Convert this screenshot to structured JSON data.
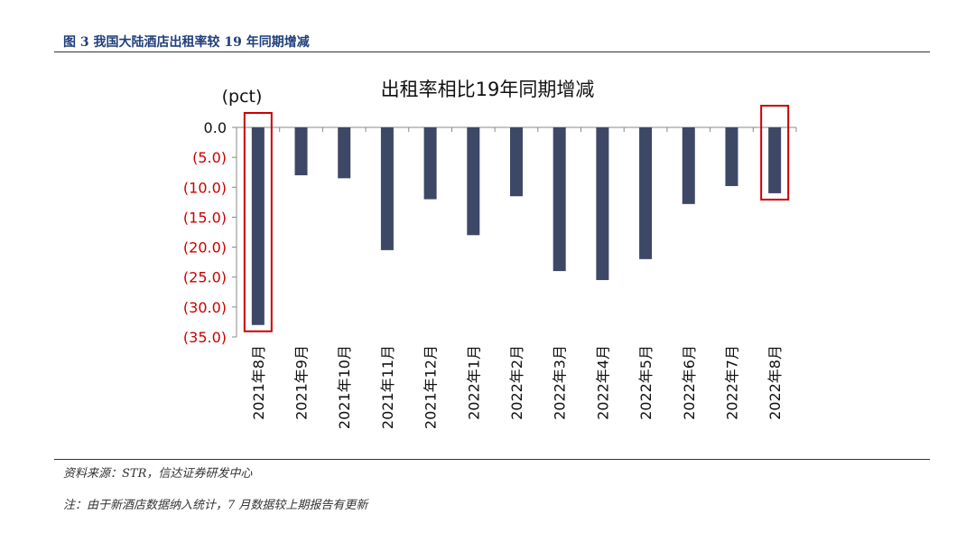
{
  "figure_label": "图 3   我国大陆酒店出租率较 19 年同期增减",
  "source_note": "资料来源：STR，信达证券研发中心",
  "footnote": "注：由于新酒店数据纳入统计，7 月数据较上期报告有更新",
  "colors": {
    "bar": "#3d4866",
    "negative_tick": "#cc0000",
    "zero_tick": "#111111",
    "highlight_box": "#cc0000"
  },
  "chart_data": {
    "type": "bar",
    "title": "出租率相比19年同期增减",
    "ylabel": "(pct)",
    "xlabel": "",
    "ylim": [
      -35,
      0
    ],
    "yticks": [
      0,
      -5,
      -10,
      -15,
      -20,
      -25,
      -30,
      -35
    ],
    "ytick_labels": [
      "0.0",
      "(5.0)",
      "(10.0)",
      "(15.0)",
      "(20.0)",
      "(25.0)",
      "(30.0)",
      "(35.0)"
    ],
    "categories": [
      "2021年8月",
      "2021年9月",
      "2021年10月",
      "2021年11月",
      "2021年12月",
      "2022年1月",
      "2022年2月",
      "2022年3月",
      "2022年4月",
      "2022年5月",
      "2022年6月",
      "2022年7月",
      "2022年8月"
    ],
    "values": [
      -33.0,
      -8.0,
      -8.5,
      -20.5,
      -12.0,
      -18.0,
      -11.5,
      -24.0,
      -25.5,
      -22.0,
      -12.8,
      -9.8,
      -11.0
    ],
    "highlighted": [
      "2021年8月",
      "2022年8月"
    ],
    "grid": false,
    "legend": "none"
  }
}
